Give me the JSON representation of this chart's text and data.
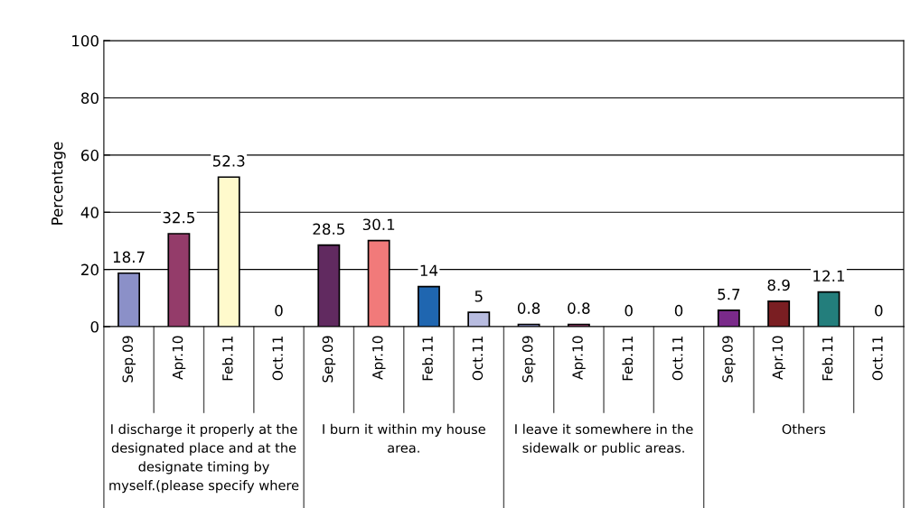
{
  "chart_data": {
    "type": "bar",
    "ylabel": "Percentage",
    "categories": [
      "Sep.09",
      "Apr.10",
      "Feb.11",
      "Oct.11",
      "Sep.09",
      "Apr.10",
      "Feb.11",
      "Oct.11",
      "Sep.09",
      "Apr.10",
      "Feb.11",
      "Oct.11",
      "Sep.09",
      "Apr.10",
      "Feb.11",
      "Oct.11"
    ],
    "values": [
      18.7,
      32.5,
      52.3,
      0,
      28.5,
      30.1,
      14,
      5,
      0.8,
      0.8,
      0,
      0,
      5.7,
      8.9,
      12.1,
      0
    ],
    "colors": [
      "#8b90c8",
      "#943c6a",
      "#fffacc",
      "#ffffff",
      "#612a60",
      "#f17a7a",
      "#1f66b0",
      "#b8bce0",
      "#8b90c8",
      "#943c6a",
      "#fffacc",
      "#ffffff",
      "#7a2a8a",
      "#7a1e22",
      "#237e7c",
      "#ffffff"
    ],
    "data_labels": true,
    "annotations": [
      "I discharge it properly at the\ndesignated place and at the\ndesignate timing by\nmyself.(please specify where",
      "I burn it within my house\narea.",
      "I leave it somewhere in the\nsidewalk or public areas.",
      "Others"
    ],
    "ylim": [
      0,
      100
    ],
    "yticks": [
      0,
      20,
      40,
      60,
      80,
      100
    ],
    "grid": "y"
  }
}
